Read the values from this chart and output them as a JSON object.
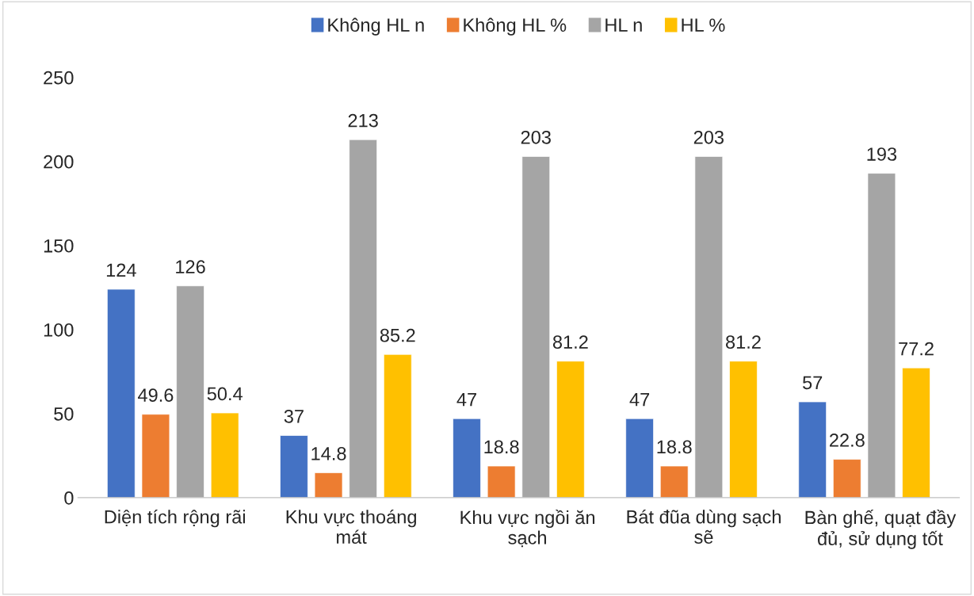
{
  "chart_data": {
    "type": "bar",
    "categories": [
      "Diện tích rộng rãi",
      "Khu vực thoáng mát",
      "Khu vực ngồi ăn sạch",
      "Bát đũa dùng sạch sẽ",
      "Bàn ghế, quạt đầy đủ, sử dụng tốt"
    ],
    "series": [
      {
        "name": "Không HL n",
        "color": "#4472c4",
        "values": [
          124,
          37,
          47,
          47,
          57
        ]
      },
      {
        "name": "Không HL %",
        "color": "#ed7d31",
        "values": [
          49.6,
          14.8,
          18.8,
          18.8,
          22.8
        ]
      },
      {
        "name": "HL n",
        "color": "#a5a5a5",
        "values": [
          126,
          213,
          203,
          203,
          193
        ]
      },
      {
        "name": "HL %",
        "color": "#ffc000",
        "values": [
          50.4,
          85.2,
          81.2,
          81.2,
          77.2
        ]
      }
    ],
    "ylim": [
      0,
      250
    ],
    "yticks": [
      0,
      50,
      100,
      150,
      200,
      250
    ],
    "data_labels": true,
    "grid": false,
    "legend": "top"
  }
}
